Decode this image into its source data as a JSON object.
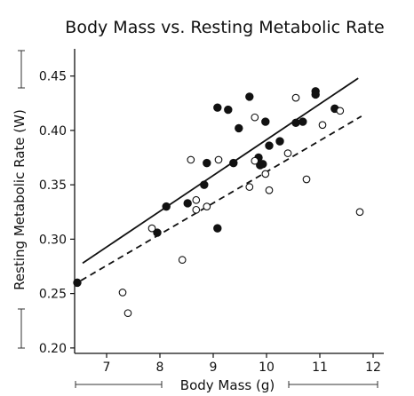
{
  "chart_data": {
    "type": "scatter",
    "title": "Body Mass vs. Resting Metabolic Rate",
    "xlabel": "Body Mass (g)",
    "ylabel": "Resting Metabolic Rate (W)",
    "xlim": [
      6.4,
      12.2
    ],
    "ylim": [
      0.195,
      0.475
    ],
    "x_ticks": [
      "7",
      "8",
      "9",
      "10",
      "11",
      "12"
    ],
    "y_ticks": [
      "0.20",
      "0.25",
      "0.30",
      "0.35",
      "0.40",
      "0.45"
    ],
    "grid": false,
    "colors": {
      "marker": "#111111",
      "line": "#111111"
    },
    "series": [
      {
        "marker": "filled-circle",
        "points": [
          [
            6.45,
            0.26
          ],
          [
            7.95,
            0.306
          ],
          [
            8.12,
            0.33
          ],
          [
            8.52,
            0.333
          ],
          [
            8.83,
            0.35
          ],
          [
            8.88,
            0.37
          ],
          [
            9.08,
            0.421
          ],
          [
            9.08,
            0.31
          ],
          [
            9.28,
            0.419
          ],
          [
            9.38,
            0.37
          ],
          [
            9.48,
            0.402
          ],
          [
            9.68,
            0.431
          ],
          [
            9.85,
            0.375
          ],
          [
            9.88,
            0.368
          ],
          [
            9.93,
            0.369
          ],
          [
            9.98,
            0.408
          ],
          [
            10.05,
            0.386
          ],
          [
            10.25,
            0.39
          ],
          [
            10.55,
            0.407
          ],
          [
            10.68,
            0.408
          ],
          [
            10.92,
            0.436
          ],
          [
            10.92,
            0.433
          ],
          [
            11.28,
            0.42
          ]
        ]
      },
      {
        "marker": "open-circle",
        "points": [
          [
            7.3,
            0.251
          ],
          [
            7.4,
            0.232
          ],
          [
            7.85,
            0.31
          ],
          [
            8.42,
            0.281
          ],
          [
            8.58,
            0.373
          ],
          [
            8.68,
            0.327
          ],
          [
            8.68,
            0.336
          ],
          [
            8.88,
            0.33
          ],
          [
            9.1,
            0.373
          ],
          [
            9.68,
            0.348
          ],
          [
            9.78,
            0.412
          ],
          [
            9.78,
            0.372
          ],
          [
            9.98,
            0.36
          ],
          [
            10.05,
            0.345
          ],
          [
            10.4,
            0.379
          ],
          [
            10.55,
            0.43
          ],
          [
            10.75,
            0.355
          ],
          [
            11.05,
            0.405
          ],
          [
            11.38,
            0.418
          ],
          [
            11.75,
            0.325
          ]
        ]
      }
    ],
    "fit_lines": [
      {
        "style": "solid",
        "x": [
          6.55,
          11.72
        ],
        "y": [
          0.278,
          0.448
        ]
      },
      {
        "style": "dashed",
        "x": [
          6.52,
          11.78
        ],
        "y": [
          0.262,
          0.413
        ]
      }
    ]
  }
}
